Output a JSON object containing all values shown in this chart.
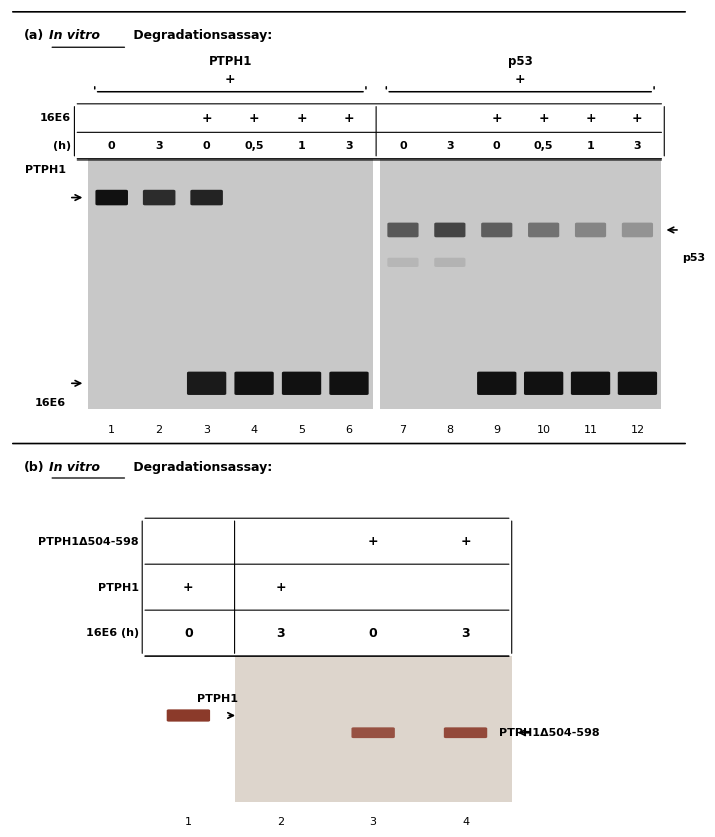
{
  "fig_width": 6.78,
  "fig_height": 8.15,
  "bg_color": "#ffffff",
  "panel_a": {
    "label": "(a)",
    "title_italic": "In vitro",
    "title_rest": " Degradationsassay:",
    "left_group_label": "PTPH1",
    "right_group_label": "p53",
    "plus_sign": "+",
    "row1_label": "16E6",
    "row2_label": "(h)",
    "row1_left_vals": [
      "",
      "",
      "+",
      "+",
      "+",
      "+"
    ],
    "row1_right_vals": [
      "",
      "",
      "+",
      "+",
      "+",
      "+"
    ],
    "row2_left_vals": [
      "0",
      "3",
      "0",
      "0,5",
      "1",
      "3"
    ],
    "row2_right_vals": [
      "0",
      "3",
      "0",
      "0,5",
      "1",
      "3"
    ],
    "left_side_labels": [
      "PTPH1",
      "16E6"
    ],
    "right_side_label": "p53",
    "lane_numbers_left": [
      "1",
      "2",
      "3",
      "4",
      "5",
      "6"
    ],
    "lane_numbers_right": [
      "7",
      "8",
      "9",
      "10",
      "11",
      "12"
    ],
    "gel_bg": "#c8c8c8",
    "band_color_dark": "#111111",
    "band_color_mid": "#444444",
    "band_color_light": "#888888"
  },
  "panel_b": {
    "label": "(b)",
    "title_italic": "In vitro",
    "title_rest": " Degradationsassay:",
    "row1_label": "PTPH1Δ504-598",
    "row2_label": "PTPH1",
    "row3_label": "16E6 (h)",
    "row1_vals": [
      "",
      "",
      "+",
      "+"
    ],
    "row2_vals": [
      "+",
      "+",
      "",
      ""
    ],
    "row3_vals": [
      "0",
      "3",
      "0",
      "3"
    ],
    "left_side_label": "PTPH1",
    "right_side_label": "PTPH1Δ504-598",
    "lane_numbers": [
      "1",
      "2",
      "3",
      "4"
    ],
    "gel_bg": "#ddd5cc",
    "band_color": "#8B3A2A"
  }
}
